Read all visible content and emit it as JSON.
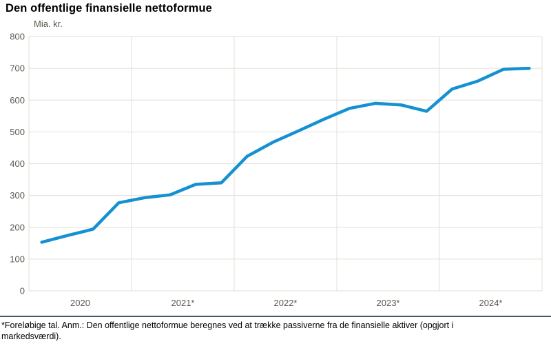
{
  "title": "Den offentlige finansielle nettoformue",
  "unit_label": "Mia. kr.",
  "footnote": "*Foreløbige tal. Anm.: Den offentlige nettoformue beregnes ved at trække passiverne fra de finansielle aktiver (opgjort i markedsværdi).",
  "colors": {
    "line": "#1591d2",
    "grid": "#e0dfd7",
    "tick_text": "#58584e",
    "divider": "#3f5d6b"
  },
  "chart_data": {
    "type": "line",
    "title": "Den offentlige finansielle nettoformue",
    "ylabel": "Mia. kr.",
    "ylim": [
      0,
      800
    ],
    "y_ticks": [
      0,
      100,
      200,
      300,
      400,
      500,
      600,
      700,
      800
    ],
    "x_year_labels": [
      "2020",
      "2021*",
      "2022*",
      "2023*",
      "2024*"
    ],
    "grid": true,
    "legend": "none",
    "series": [
      {
        "x": [
          "2020 K1",
          "2020 K2",
          "2020 K3",
          "2020 K4",
          "2021 K1",
          "2021 K2",
          "2021 K3",
          "2021 K4",
          "2022 K1",
          "2022 K2",
          "2022 K3",
          "2022 K4",
          "2023 K1",
          "2023 K2",
          "2023 K3",
          "2023 K4",
          "2024 K1",
          "2024 K2",
          "2024 K3",
          "2024 K4"
        ],
        "values": [
          153,
          174,
          194,
          277,
          293,
          302,
          335,
          340,
          423,
          467,
          503,
          540,
          574,
          590,
          585,
          565,
          635,
          660,
          697,
          700
        ]
      }
    ]
  }
}
